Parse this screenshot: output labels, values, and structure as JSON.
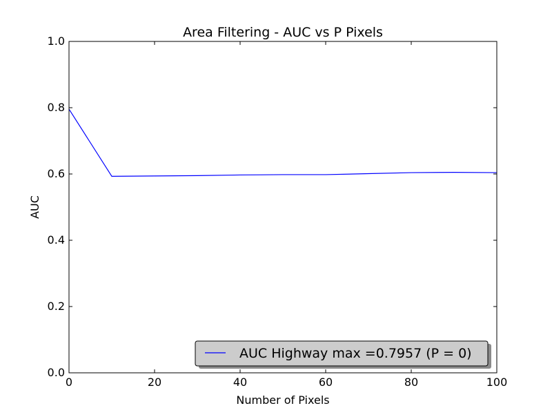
{
  "chart_data": {
    "type": "line",
    "title": "Area Filtering - AUC vs P Pixels",
    "xlabel": "Number of Pixels",
    "ylabel": "AUC",
    "xlim": [
      0,
      100
    ],
    "ylim": [
      0.0,
      1.0
    ],
    "xticks": [
      0,
      20,
      40,
      60,
      80,
      100
    ],
    "xtick_labels": [
      "0",
      "20",
      "40",
      "60",
      "80",
      "100"
    ],
    "yticks": [
      0.0,
      0.2,
      0.4,
      0.6,
      0.8,
      1.0
    ],
    "ytick_labels": [
      "0.0",
      "0.2",
      "0.4",
      "0.6",
      "0.8",
      "1.0"
    ],
    "grid": false,
    "legend_position": "lower-right",
    "series": [
      {
        "name": "AUC Highway max =0.7957 (P = 0)",
        "color": "#0000ff",
        "x": [
          0,
          10,
          20,
          30,
          40,
          50,
          60,
          70,
          80,
          90,
          100
        ],
        "y": [
          0.7957,
          0.593,
          0.594,
          0.595,
          0.597,
          0.598,
          0.598,
          0.601,
          0.604,
          0.605,
          0.604
        ]
      }
    ]
  }
}
